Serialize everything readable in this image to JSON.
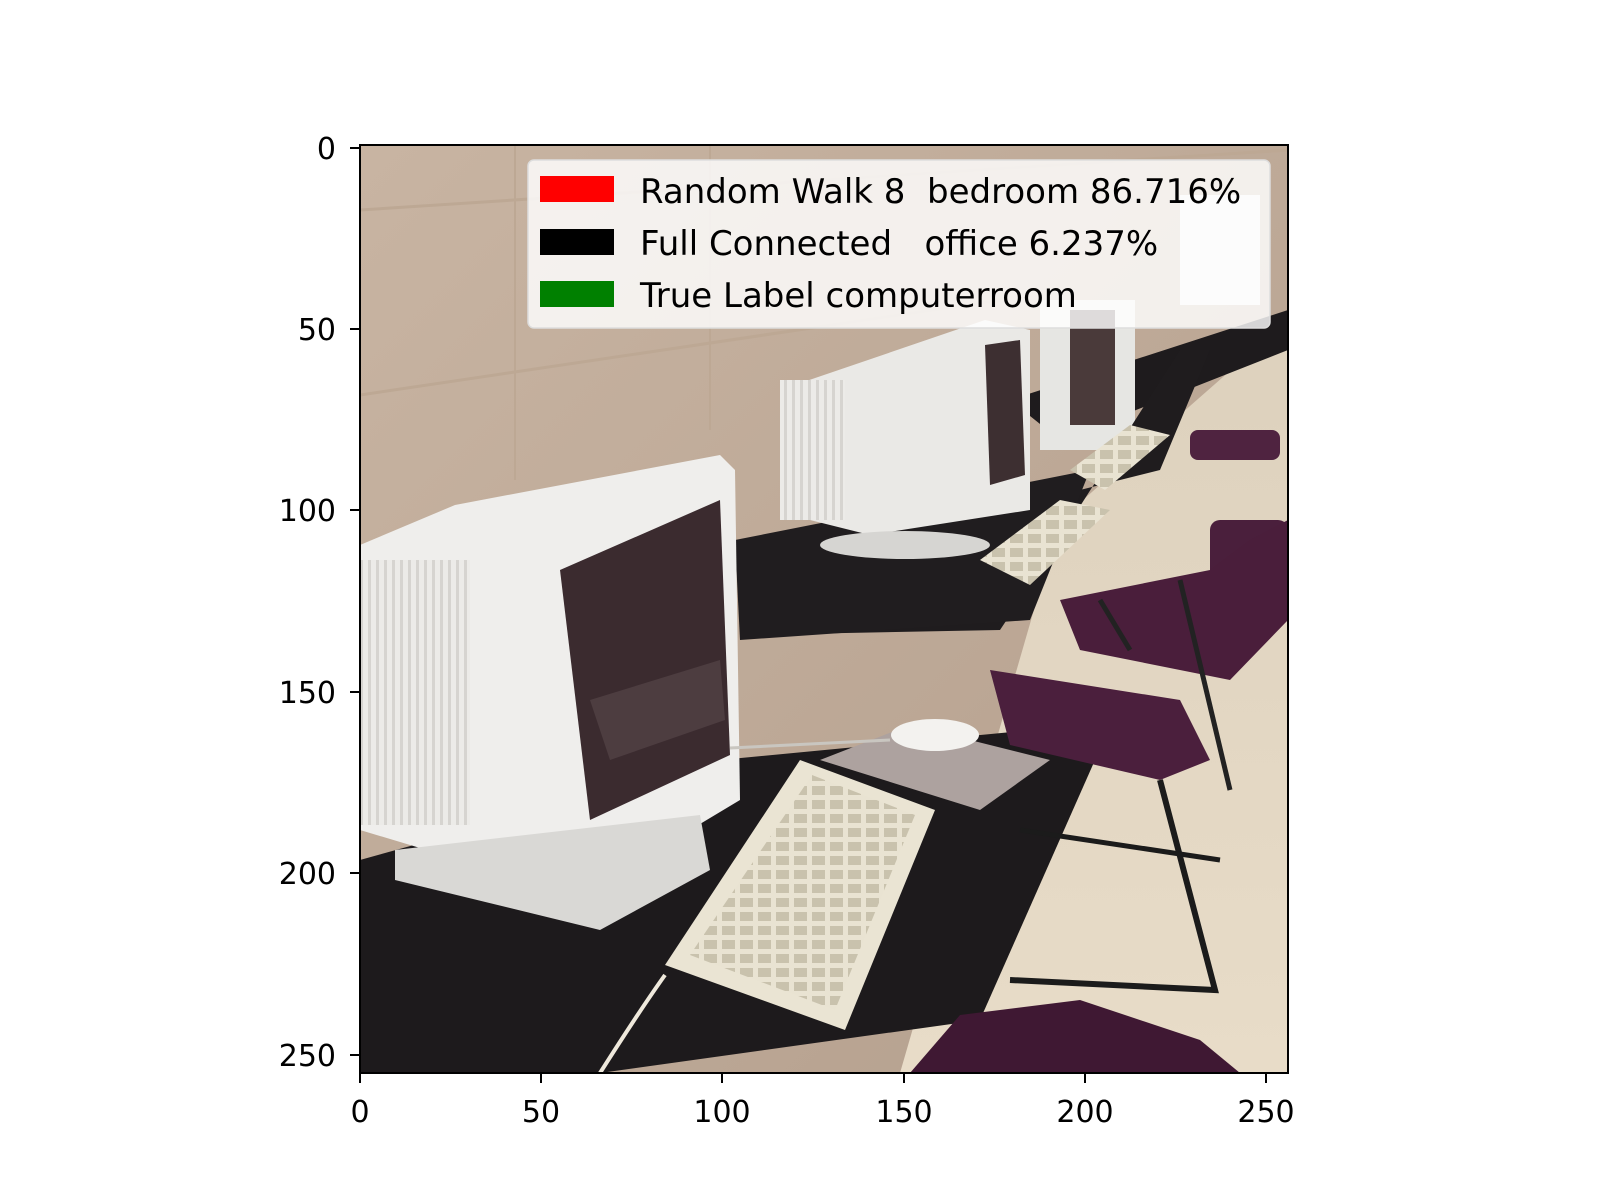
{
  "figure": {
    "image_subject": "computer lab: rows of white CRT monitors and beige keyboards on black desks with purple chairs",
    "x_ticks": [
      "0",
      "50",
      "100",
      "150",
      "200",
      "250"
    ],
    "y_ticks": [
      "0",
      "50",
      "100",
      "150",
      "200",
      "250"
    ],
    "xlim": [
      0,
      256
    ],
    "ylim": [
      256,
      0
    ],
    "legend": {
      "placement": "top-right",
      "entries": [
        {
          "label": "Random Walk 8  bedroom 86.716%",
          "color": "#ff0000"
        },
        {
          "label": "Full Connected   office 6.237%",
          "color": "#000000"
        },
        {
          "label": "True Label computerroom",
          "color": "#008000"
        }
      ]
    }
  }
}
